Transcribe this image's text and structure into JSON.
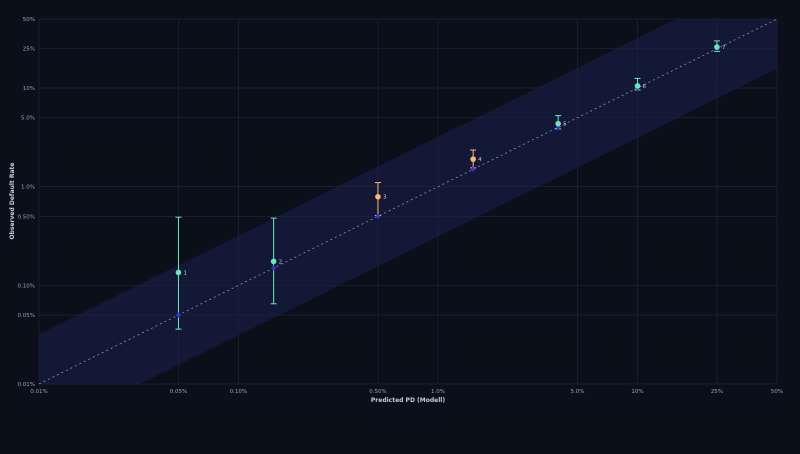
{
  "chart_data": {
    "type": "scatter",
    "title": "",
    "xlabel": "Predicted PD (Modell)",
    "ylabel": "Observed Default Rate",
    "x_scale": "log",
    "y_scale": "log",
    "xlim": [
      0.0001,
      0.5
    ],
    "ylim": [
      0.0001,
      0.5
    ],
    "grid": true,
    "x_ticks": [
      {
        "value": 0.0001,
        "label": "0.01%"
      },
      {
        "value": 0.0005,
        "label": "0.05%"
      },
      {
        "value": 0.001,
        "label": "0.10%"
      },
      {
        "value": 0.005,
        "label": "0.50%"
      },
      {
        "value": 0.01,
        "label": "1.0%"
      },
      {
        "value": 0.05,
        "label": "5.0%"
      },
      {
        "value": 0.1,
        "label": "10%"
      },
      {
        "value": 0.25,
        "label": "25%"
      },
      {
        "value": 0.5,
        "label": "50%"
      }
    ],
    "y_ticks": [
      {
        "value": 0.0001,
        "label": "0.01%"
      },
      {
        "value": 0.0005,
        "label": "0.05%"
      },
      {
        "value": 0.001,
        "label": "0.10%"
      },
      {
        "value": 0.005,
        "label": "0.50%"
      },
      {
        "value": 0.01,
        "label": "1.0%"
      },
      {
        "value": 0.05,
        "label": "5.0%"
      },
      {
        "value": 0.1,
        "label": "10%"
      },
      {
        "value": 0.25,
        "label": "25%"
      },
      {
        "value": 0.5,
        "label": "50%"
      }
    ],
    "grades": [
      {
        "label": "1",
        "predicted": 0.0005,
        "observed": 0.00135,
        "ci_low": 0.00036,
        "ci_high": 0.0049,
        "color": "#6ee7b7"
      },
      {
        "label": "2",
        "predicted": 0.0015,
        "observed": 0.00175,
        "ci_low": 0.00065,
        "ci_high": 0.0048,
        "color": "#6ee7b7"
      },
      {
        "label": "3",
        "predicted": 0.005,
        "observed": 0.0079,
        "ci_low": 0.0051,
        "ci_high": 0.011,
        "color": "#fdba74"
      },
      {
        "label": "4",
        "predicted": 0.015,
        "observed": 0.019,
        "ci_low": 0.0155,
        "ci_high": 0.0235,
        "color": "#fdba74"
      },
      {
        "label": "5",
        "predicted": 0.04,
        "observed": 0.0435,
        "ci_low": 0.0385,
        "ci_high": 0.0525,
        "color": "#6ee7b7"
      },
      {
        "label": "6",
        "predicted": 0.1,
        "observed": 0.105,
        "ci_low": 0.0955,
        "ci_high": 0.125,
        "color": "#6ee7b7"
      },
      {
        "label": "7",
        "predicted": 0.25,
        "observed": 0.26,
        "ci_low": 0.235,
        "ci_high": 0.3,
        "color": "#6ee7b7"
      }
    ],
    "colors": {
      "background": "#0a0f1a",
      "grid": "#1c2436",
      "band": "#141a3a",
      "diagonal": "#8a93b8",
      "predicted_marker": "#3b2fd0",
      "axis_text": "#9aa3b8",
      "label_text": "#c7cde0"
    }
  }
}
